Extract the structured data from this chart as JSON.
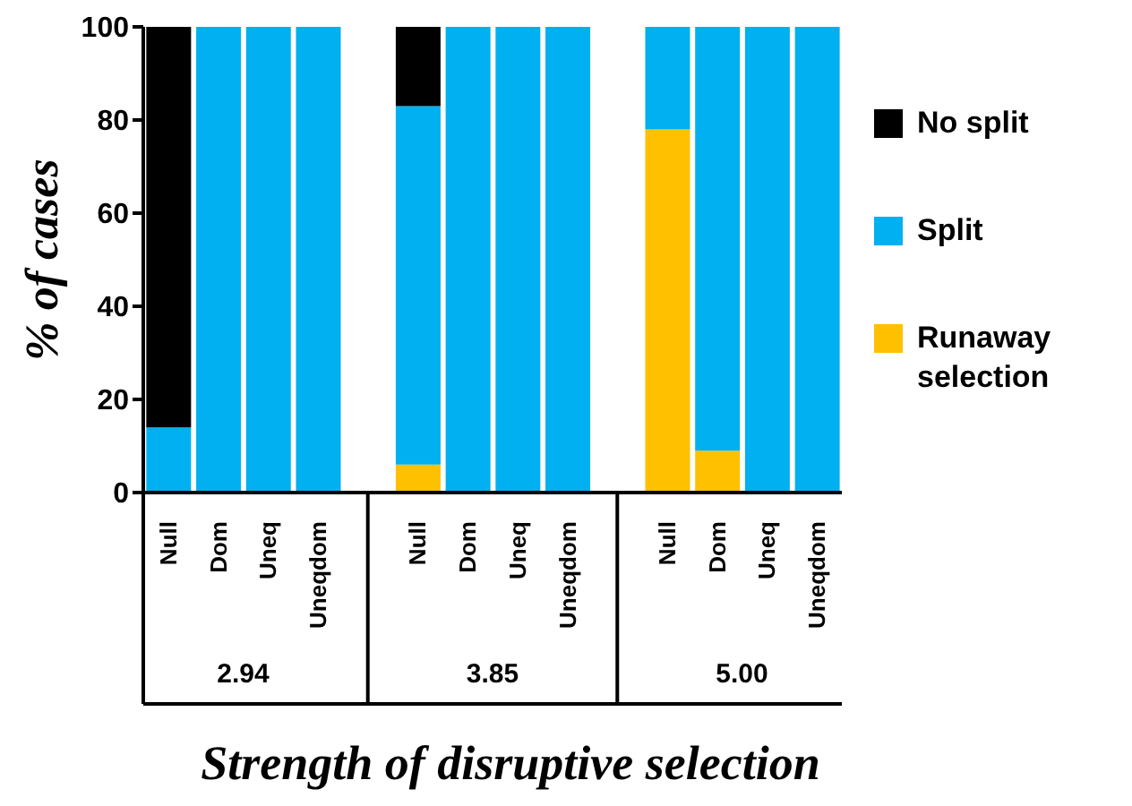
{
  "chart_data": {
    "type": "bar",
    "stacked": true,
    "xlabel": "Strength of disruptive selection",
    "ylabel": "% of cases",
    "categories": [
      "Null",
      "Dom",
      "Uneq",
      "Uneqdom",
      null,
      "Null",
      "Dom",
      "Uneq",
      "Uneqdom",
      null,
      "Null",
      "Dom",
      "Uneq",
      "Uneqdom"
    ],
    "series": [
      {
        "name": "Runaway selection",
        "color": "#ffc000",
        "values": [
          0,
          0,
          0,
          0,
          null,
          6,
          0,
          0,
          0,
          null,
          78,
          9,
          0,
          0
        ]
      },
      {
        "name": "Split",
        "color": "#00b0f0",
        "values": [
          14,
          100,
          100,
          100,
          null,
          77,
          100,
          100,
          100,
          null,
          22,
          91,
          100,
          100
        ]
      },
      {
        "name": "No split",
        "color": "#000000",
        "values": [
          86,
          0,
          0,
          0,
          null,
          17,
          0,
          0,
          0,
          null,
          0,
          0,
          0,
          0
        ]
      }
    ],
    "annotations": [
      "2.94",
      "3.85",
      "5.00"
    ],
    "ylim": [
      0,
      100
    ],
    "yticks": [
      0,
      20,
      40,
      60,
      80,
      100
    ],
    "legend": "right"
  }
}
